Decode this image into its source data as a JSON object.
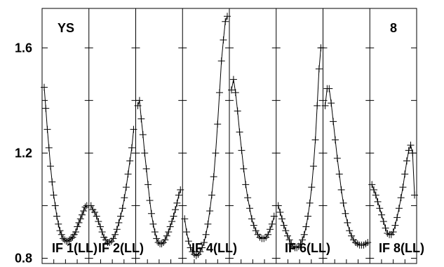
{
  "chart_data": {
    "type": "line",
    "corner_labels": {
      "left": "YS",
      "right": "8"
    },
    "ylim": [
      0.78,
      1.75
    ],
    "yticks": [
      {
        "value": 0.8,
        "label": "0.8"
      },
      {
        "value": 1.2,
        "label": "1.2"
      },
      {
        "value": 1.6,
        "label": "1.6"
      }
    ],
    "panel_labels": [
      "IF 1(LL)",
      "IF 2(LL)",
      "IF 4(LL)",
      "IF 6(LL)",
      "IF 8(LL)"
    ],
    "panels": [
      {
        "y": [
          1.45,
          1.37,
          1.29,
          1.22,
          1.15,
          1.09,
          1.04,
          1.0,
          0.96,
          0.93,
          0.905,
          0.89,
          0.875,
          0.87,
          0.865,
          0.865,
          0.87,
          0.875,
          0.88,
          0.89,
          0.9,
          0.92,
          0.935,
          0.95,
          0.965,
          0.98,
          0.995,
          1.0
        ]
      },
      {
        "y": [
          1.0,
          0.985,
          0.975,
          0.96,
          0.94,
          0.92,
          0.9,
          0.88,
          0.87,
          0.86,
          0.86,
          0.865,
          0.875,
          0.89,
          0.91,
          0.935,
          0.96,
          0.99,
          1.03,
          1.07,
          1.12,
          1.17,
          1.22,
          1.29
        ]
      },
      {
        "y": [
          1.38,
          1.4,
          1.33,
          1.27,
          1.2,
          1.14,
          1.08,
          1.02,
          0.97,
          0.93,
          0.9,
          0.875,
          0.86,
          0.855,
          0.855,
          0.86,
          0.87,
          0.885,
          0.9,
          0.92,
          0.94,
          0.96,
          0.985,
          1.01,
          1.04,
          1.06
        ]
      },
      {
        "y": [
          0.95,
          0.9,
          0.865,
          0.84,
          0.825,
          0.815,
          0.81,
          0.815,
          0.825,
          0.84,
          0.86,
          0.89,
          0.93,
          0.98,
          1.04,
          1.11,
          1.2,
          1.31,
          1.43,
          1.55,
          1.63,
          1.7,
          1.72
        ]
      },
      {
        "y": [
          1.44,
          1.48,
          1.43,
          1.36,
          1.28,
          1.21,
          1.14,
          1.08,
          1.03,
          0.99,
          0.95,
          0.925,
          0.905,
          0.89,
          0.88,
          0.875,
          0.875,
          0.88,
          0.89,
          0.91,
          0.93,
          0.96
        ]
      },
      {
        "y": [
          1.0,
          0.975,
          0.95,
          0.925,
          0.905,
          0.885,
          0.87,
          0.855,
          0.845,
          0.84,
          0.84,
          0.845,
          0.855,
          0.87,
          0.89,
          0.92,
          0.96,
          1.01,
          1.07,
          1.15,
          1.25,
          1.38,
          1.52,
          1.6
        ]
      },
      {
        "y": [
          1.38,
          1.445,
          1.445,
          1.39,
          1.32,
          1.25,
          1.18,
          1.12,
          1.06,
          1.01,
          0.97,
          0.935,
          0.905,
          0.885,
          0.87,
          0.86,
          0.855,
          0.85,
          0.85,
          0.85,
          0.855,
          0.86
        ]
      },
      {
        "y": [
          1.08,
          1.06,
          1.04,
          1.015,
          0.99,
          0.965,
          0.94,
          0.915,
          0.895,
          0.89,
          0.89,
          0.9,
          0.925,
          0.955,
          0.99,
          1.03,
          1.07,
          1.12,
          1.17,
          1.21,
          1.23,
          1.2,
          1.04
        ]
      }
    ]
  }
}
